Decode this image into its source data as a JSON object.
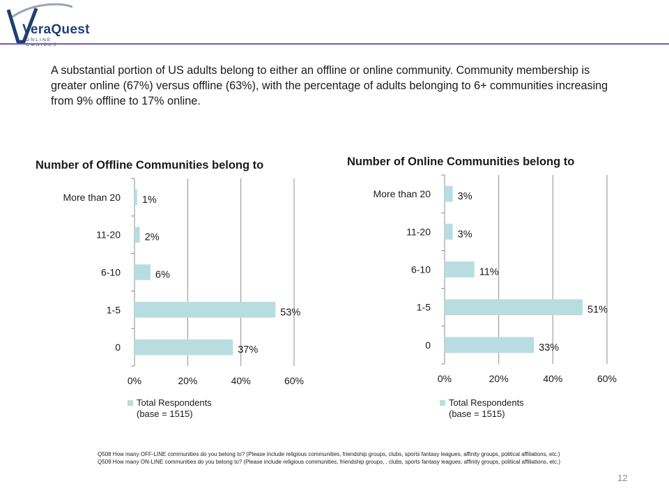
{
  "logo": {
    "wordmark": "VeraQuest",
    "tagline": "ONLINE OMNIBUS",
    "brand_color": "#1f3f72",
    "rule_color": "#7b5aa6"
  },
  "intro_text": "A substantial portion of US adults belong to either an offline or online community. Community membership is greater online (67%) versus offline (63%), with the percentage of adults belonging to 6+ communities increasing from 9% offline to 17% online.",
  "chart_data": [
    {
      "type": "bar",
      "orientation": "horizontal",
      "title": "Number of Offline Communities belong to",
      "categories": [
        "More than 20",
        "11-20",
        "6-10",
        "1-5",
        "0"
      ],
      "series": [
        {
          "name": "Total Respondents (base = 1515)",
          "values": [
            1,
            2,
            6,
            53,
            37
          ],
          "color": "#b7dde1"
        }
      ],
      "value_labels": [
        "1%",
        "2%",
        "6%",
        "53%",
        "37%"
      ],
      "xticks": [
        "0%",
        "20%",
        "40%",
        "60%"
      ],
      "xlim": [
        0,
        60
      ],
      "grid": true,
      "legend_position": "bottom"
    },
    {
      "type": "bar",
      "orientation": "horizontal",
      "title": "Number of Online Communities belong to",
      "categories": [
        "More than 20",
        "11-20",
        "6-10",
        "1-5",
        "0"
      ],
      "series": [
        {
          "name": "Total Respondents (base = 1515)",
          "values": [
            3,
            3,
            11,
            51,
            33
          ],
          "color": "#b7dde1"
        }
      ],
      "value_labels": [
        "3%",
        "3%",
        "11%",
        "51%",
        "33%"
      ],
      "xticks": [
        "0%",
        "20%",
        "40%",
        "60%"
      ],
      "xlim": [
        0,
        60
      ],
      "grid": true,
      "legend_position": "bottom"
    }
  ],
  "legend": {
    "line1": "Total Respondents",
    "line2": "(base = 1515)"
  },
  "footnote": {
    "q508": "Q508 How many OFF-LINE communities do you belong to? (Please include religious communities, friendship groups, clubs, sports fantasy leagues, affinity groups, political affiliations, etc.)",
    "q509": "Q509 How many ON-LINE communities do you belong to? (Please include religious communities, friendship groups, , clubs, sports fantasy leagues, affinity groups, political affiliations, etc.)"
  },
  "page_number": "12"
}
